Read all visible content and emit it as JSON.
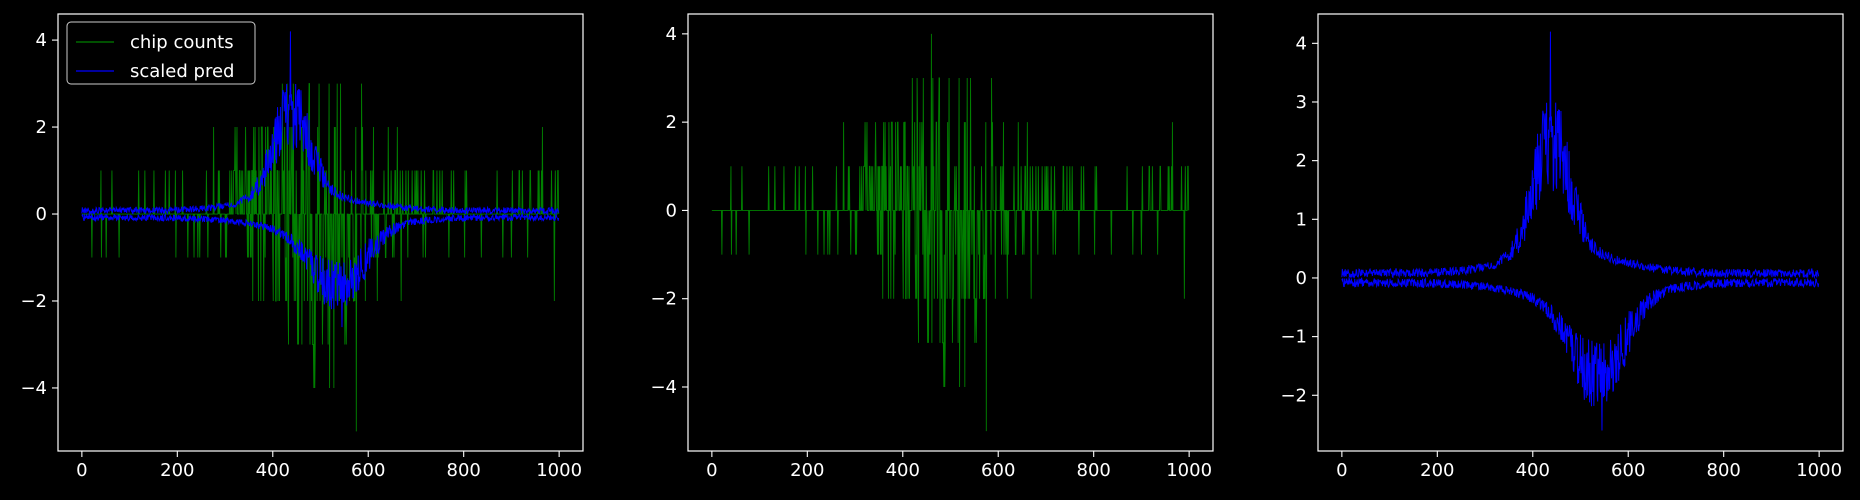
{
  "figure": {
    "background": "#000000",
    "foreground": "#ffffff"
  },
  "colors": {
    "chip_counts": "#008000",
    "scaled_pred": "#0000ff"
  },
  "chart_data": [
    {
      "type": "line",
      "title": "",
      "xlabel": "",
      "ylabel": "",
      "xlim": [
        -50,
        1050
      ],
      "ylim": [
        -5.45,
        4.6
      ],
      "xticks": [
        0,
        200,
        400,
        600,
        800,
        1000
      ],
      "xtick_labels": [
        "0",
        "200",
        "400",
        "600",
        "800",
        "1000"
      ],
      "yticks": [
        -4,
        -2,
        0,
        2,
        4
      ],
      "ytick_labels": [
        "−4",
        "−2",
        "0",
        "2",
        "4"
      ],
      "grid": false,
      "legend": {
        "placement": "top-left",
        "entries": [
          {
            "label": "chip counts",
            "color": "#008000"
          },
          {
            "label": "scaled pred",
            "color": "#0000ff"
          }
        ]
      },
      "series": [
        {
          "name": "chip counts",
          "color": "#008000",
          "style": "integer spikes",
          "x_range": [
            0,
            999
          ],
          "approx_min": -5,
          "approx_max": 3,
          "peak_points": [
            {
              "x": 575,
              "y": -5
            },
            {
              "x": 420,
              "y": 3
            },
            {
              "x": 528,
              "y": -4
            },
            {
              "x": 463,
              "y": 2
            },
            {
              "x": 965,
              "y": 2
            },
            {
              "x": 990,
              "y": -2
            }
          ]
        },
        {
          "name": "scaled pred",
          "color": "#0000ff",
          "style": "symmetric envelope",
          "x_range": [
            0,
            999
          ],
          "upper_peak": {
            "x": 437,
            "y": 4.2
          },
          "lower_peak": {
            "x": 545,
            "y": -2.6
          },
          "baseline": 0
        }
      ]
    },
    {
      "type": "line",
      "title": "",
      "xlabel": "",
      "ylabel": "",
      "xlim": [
        -50,
        1050
      ],
      "ylim": [
        -5.45,
        4.45
      ],
      "xticks": [
        0,
        200,
        400,
        600,
        800,
        1000
      ],
      "xtick_labels": [
        "0",
        "200",
        "400",
        "600",
        "800",
        "1000"
      ],
      "yticks": [
        -4,
        -2,
        0,
        2,
        4
      ],
      "ytick_labels": [
        "−4",
        "−2",
        "0",
        "2",
        "4"
      ],
      "grid": false,
      "series": [
        {
          "name": "",
          "color": "#008000",
          "style": "integer spikes",
          "x_range": [
            0,
            999
          ],
          "approx_min": -5,
          "approx_max": 4,
          "peak_points": [
            {
              "x": 460,
              "y": 4
            },
            {
              "x": 575,
              "y": -5
            },
            {
              "x": 530,
              "y": -4
            },
            {
              "x": 420,
              "y": 3
            },
            {
              "x": 965,
              "y": 2
            },
            {
              "x": 990,
              "y": -2
            }
          ]
        }
      ]
    },
    {
      "type": "line",
      "title": "",
      "xlabel": "",
      "ylabel": "",
      "xlim": [
        -50,
        1050
      ],
      "ylim": [
        -2.95,
        4.5
      ],
      "xticks": [
        0,
        200,
        400,
        600,
        800,
        1000
      ],
      "xtick_labels": [
        "0",
        "200",
        "400",
        "600",
        "800",
        "1000"
      ],
      "yticks": [
        -2,
        -1,
        0,
        1,
        2,
        3,
        4
      ],
      "ytick_labels": [
        "−2",
        "−1",
        "0",
        "1",
        "2",
        "3",
        "4"
      ],
      "grid": false,
      "series": [
        {
          "name": "",
          "color": "#0000ff",
          "style": "symmetric envelope",
          "x_range": [
            0,
            999
          ],
          "upper_peak": {
            "x": 437,
            "y": 4.2
          },
          "lower_peak": {
            "x": 545,
            "y": -2.6
          },
          "baseline": 0
        }
      ]
    }
  ]
}
